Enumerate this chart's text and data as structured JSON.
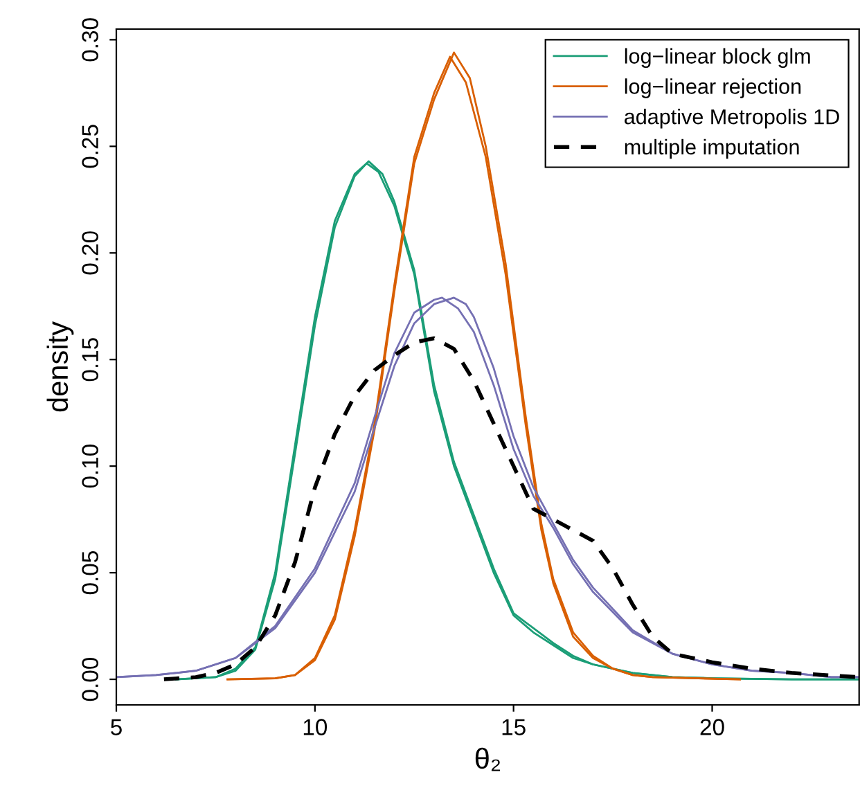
{
  "chart_data": {
    "type": "line",
    "xlabel": "θ₂",
    "ylabel": "density",
    "xlim": [
      5,
      23.7
    ],
    "ylim": [
      -0.012,
      0.305
    ],
    "xticks": [
      5,
      10,
      15,
      20
    ],
    "yticks": [
      {
        "value": 0,
        "label": "0.00"
      },
      0.05,
      {
        "value": 0.1,
        "label": "0.10"
      },
      0.15,
      {
        "value": 0.2,
        "label": "0.20"
      },
      0.25,
      {
        "value": 0.3,
        "label": "0.30"
      }
    ],
    "grid": false,
    "legend": "top right",
    "marker": "none",
    "series": [
      {
        "name": "log−linear block glm",
        "color": "#1b9e77",
        "line_style": "solid",
        "x": [
          6.5,
          7.5,
          8,
          8.5,
          9,
          9.5,
          10,
          10.5,
          11,
          11.3,
          11.6,
          12,
          12.5,
          13,
          13.5,
          14,
          14.5,
          15,
          15.5,
          16,
          16.5,
          17,
          18,
          19,
          20,
          22,
          23.7
        ],
        "values": [
          0,
          0.001,
          0.005,
          0.015,
          0.05,
          0.11,
          0.17,
          0.215,
          0.237,
          0.242,
          0.238,
          0.222,
          0.19,
          0.135,
          0.1,
          0.075,
          0.05,
          0.03,
          0.022,
          0.016,
          0.01,
          0.007,
          0.003,
          0.001,
          0.0005,
          0,
          0
        ]
      },
      {
        "color": "#1b9e77",
        "line_style": "solid",
        "x": [
          6.5,
          7.5,
          8,
          8.5,
          9,
          9.5,
          10,
          10.5,
          11,
          11.35,
          11.7,
          12,
          12.5,
          13,
          13.5,
          14,
          14.5,
          15,
          15.5,
          16,
          16.5,
          17,
          18,
          19,
          20,
          22,
          23.7
        ],
        "values": [
          0,
          0.001,
          0.004,
          0.014,
          0.047,
          0.106,
          0.166,
          0.212,
          0.236,
          0.243,
          0.237,
          0.224,
          0.192,
          0.138,
          0.102,
          0.077,
          0.052,
          0.031,
          0.024,
          0.017,
          0.011,
          0.007,
          0.003,
          0.001,
          0.0005,
          0,
          0
        ]
      },
      {
        "name": "log−linear rejection",
        "color": "#d95f02",
        "line_style": "solid",
        "x": [
          7.8,
          9,
          9.5,
          10,
          10.5,
          11,
          11.5,
          12,
          12.5,
          13,
          13.4,
          13.8,
          14.3,
          14.8,
          15.3,
          15.7,
          16,
          16.5,
          17,
          17.5,
          18,
          18.5,
          20.7
        ],
        "values": [
          0,
          0.0005,
          0.002,
          0.01,
          0.03,
          0.07,
          0.12,
          0.185,
          0.245,
          0.275,
          0.292,
          0.28,
          0.245,
          0.19,
          0.12,
          0.07,
          0.045,
          0.02,
          0.01,
          0.005,
          0.002,
          0.001,
          0
        ]
      },
      {
        "color": "#d95f02",
        "line_style": "solid",
        "x": [
          7.8,
          9,
          9.5,
          10,
          10.5,
          11,
          11.5,
          12,
          12.5,
          13,
          13.5,
          13.9,
          14.3,
          14.8,
          15.3,
          15.7,
          16,
          16.5,
          17,
          17.5,
          18,
          18.5,
          20.7
        ],
        "values": [
          0,
          0.0005,
          0.002,
          0.009,
          0.028,
          0.067,
          0.117,
          0.182,
          0.242,
          0.272,
          0.294,
          0.282,
          0.25,
          0.195,
          0.124,
          0.073,
          0.047,
          0.022,
          0.011,
          0.005,
          0.002,
          0.001,
          0
        ]
      },
      {
        "name": "adaptive Metropolis 1D",
        "color": "#7570b3",
        "line_style": "solid",
        "x": [
          5,
          6,
          7,
          8,
          9,
          10,
          11,
          11.5,
          12,
          12.5,
          13,
          13.2,
          13.6,
          14,
          14.5,
          15,
          15.5,
          16,
          16.5,
          17,
          18,
          19,
          20,
          21,
          22,
          23,
          23.7
        ],
        "values": [
          0.001,
          0.002,
          0.004,
          0.01,
          0.025,
          0.052,
          0.092,
          0.123,
          0.153,
          0.172,
          0.178,
          0.179,
          0.174,
          0.163,
          0.138,
          0.108,
          0.086,
          0.071,
          0.054,
          0.041,
          0.022,
          0.012,
          0.007,
          0.004,
          0.003,
          0.001,
          0.001
        ]
      },
      {
        "color": "#7570b3",
        "line_style": "solid",
        "x": [
          5,
          6,
          7,
          8,
          9,
          10,
          11,
          11.5,
          12,
          12.5,
          13,
          13.5,
          13.8,
          14,
          14.5,
          15,
          15.5,
          16,
          16.5,
          17,
          18,
          19,
          20,
          21,
          22,
          23,
          23.7
        ],
        "values": [
          0.001,
          0.002,
          0.004,
          0.01,
          0.024,
          0.05,
          0.088,
          0.118,
          0.147,
          0.167,
          0.176,
          0.179,
          0.176,
          0.17,
          0.146,
          0.114,
          0.09,
          0.073,
          0.056,
          0.043,
          0.023,
          0.012,
          0.007,
          0.004,
          0.003,
          0.001,
          0.001
        ]
      },
      {
        "name": "multiple imputation",
        "color": "#000000",
        "line_style": "dashed",
        "x": [
          6.2,
          7,
          7.5,
          8,
          8.5,
          9,
          9.5,
          10,
          10.5,
          11,
          11.5,
          12,
          12.5,
          13,
          13.5,
          14,
          14.5,
          15,
          15.5,
          16,
          16.5,
          17,
          17.5,
          18,
          18.5,
          19,
          20,
          21,
          22,
          23.7
        ],
        "values": [
          0,
          0.001,
          0.003,
          0.007,
          0.015,
          0.03,
          0.055,
          0.09,
          0.115,
          0.133,
          0.145,
          0.152,
          0.158,
          0.16,
          0.155,
          0.14,
          0.12,
          0.1,
          0.08,
          0.075,
          0.07,
          0.065,
          0.052,
          0.035,
          0.02,
          0.012,
          0.008,
          0.005,
          0.003,
          0.001
        ]
      }
    ]
  }
}
